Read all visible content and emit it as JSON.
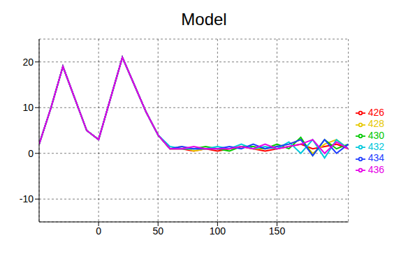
{
  "chart_data": {
    "type": "line",
    "title": "Model",
    "x": [
      -50,
      -40,
      -30,
      -20,
      -10,
      0,
      10,
      20,
      30,
      40,
      50,
      60,
      70,
      80,
      90,
      100,
      110,
      120,
      130,
      140,
      150,
      160,
      170,
      180,
      190,
      200,
      210
    ],
    "series": [
      {
        "name": "426",
        "color": "#ff0000",
        "values": [
          2,
          10,
          19,
          12,
          5,
          3,
          12,
          21,
          15,
          9,
          4,
          1,
          1,
          0.5,
          1,
          0.5,
          1,
          1.5,
          1,
          0.5,
          1,
          1.5,
          2,
          1,
          1.5,
          2,
          1
        ]
      },
      {
        "name": "428",
        "color": "#e6c800",
        "values": [
          2,
          10,
          19,
          12,
          5,
          3,
          12,
          21,
          15,
          9,
          4,
          1,
          1.5,
          0.5,
          1,
          1,
          1,
          1.5,
          1,
          1,
          1.5,
          2,
          3,
          0,
          2,
          3,
          1
        ]
      },
      {
        "name": "430",
        "color": "#00c800",
        "values": [
          2,
          10,
          19,
          12,
          5,
          3,
          12,
          21,
          15,
          9,
          4,
          1,
          1,
          1,
          1.5,
          1,
          0.5,
          1.5,
          1.5,
          1,
          2,
          1,
          3.5,
          -0.5,
          3,
          1,
          2
        ]
      },
      {
        "name": "432",
        "color": "#00c8dc",
        "values": [
          2,
          10,
          19,
          12,
          5,
          3,
          12,
          21,
          15,
          9,
          4,
          1.5,
          1,
          1,
          1,
          1.5,
          1,
          2,
          1,
          1.5,
          1,
          2.5,
          0,
          3,
          -1,
          3,
          1
        ]
      },
      {
        "name": "434",
        "color": "#1e3cff",
        "values": [
          2,
          10,
          19,
          12,
          5,
          3,
          12,
          21,
          15,
          9,
          4,
          1,
          1.5,
          1,
          1,
          1,
          1.5,
          1,
          2,
          1,
          1.5,
          2,
          3,
          -0.5,
          3,
          0,
          2
        ]
      },
      {
        "name": "436",
        "color": "#e600e6",
        "values": [
          2,
          10,
          19,
          12,
          5,
          3,
          12,
          21,
          15,
          9,
          4,
          1,
          1,
          1.5,
          1,
          1,
          1,
          1.5,
          1,
          2,
          1,
          1.5,
          2,
          3,
          0,
          2.5,
          1
        ]
      }
    ],
    "xlim": [
      -50,
      210
    ],
    "xticks": [
      0,
      50,
      100,
      150
    ],
    "ylim": [
      -15,
      25
    ],
    "yticks": [
      -10,
      0,
      10,
      20
    ],
    "grid": true,
    "legend": "right"
  }
}
